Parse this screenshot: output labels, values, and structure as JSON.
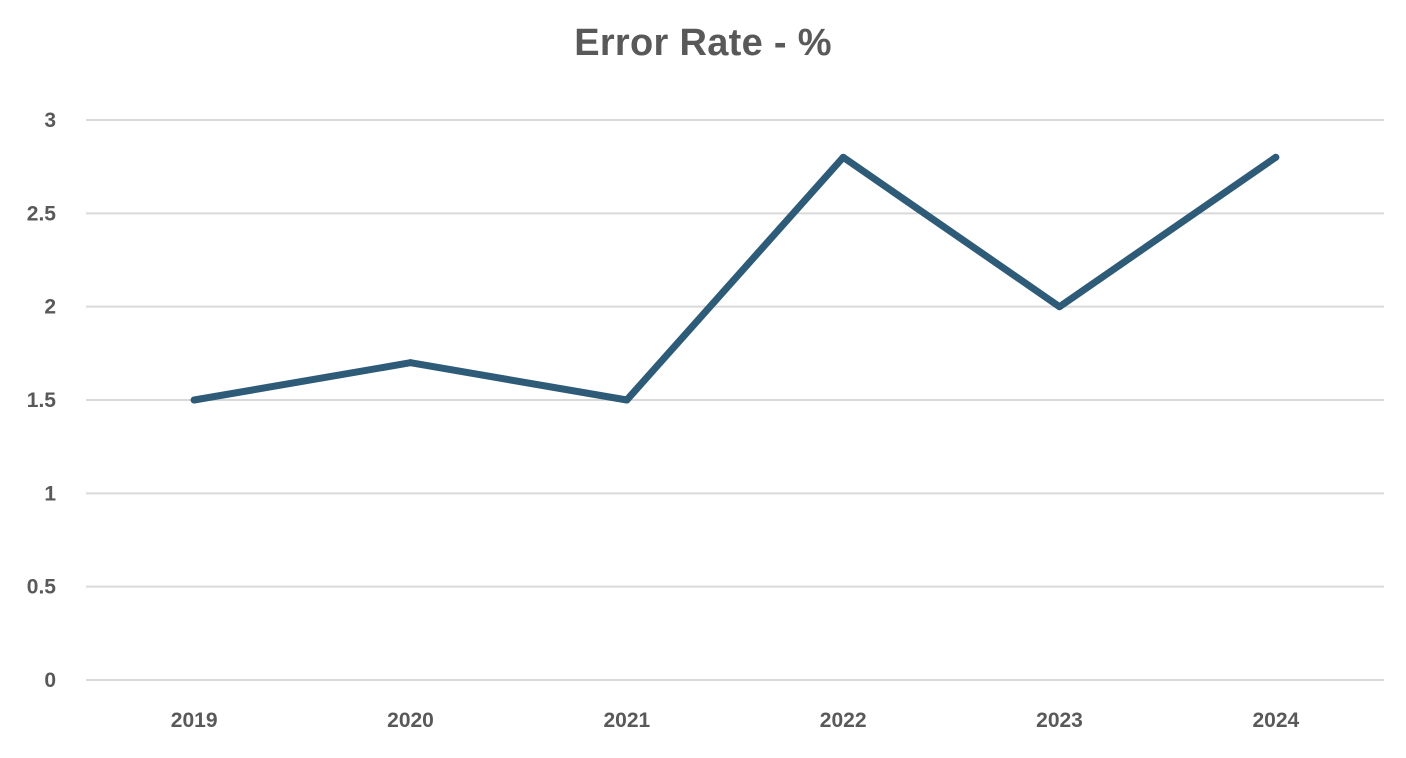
{
  "chart_data": {
    "type": "line",
    "title": "Error Rate - %",
    "xlabel": "",
    "ylabel": "",
    "categories": [
      "2019",
      "2020",
      "2021",
      "2022",
      "2023",
      "2024"
    ],
    "series": [
      {
        "values": [
          1.5,
          1.7,
          1.5,
          2.8,
          2.0,
          2.8
        ],
        "color": "#2e5b78"
      }
    ],
    "ylim": [
      0,
      3
    ],
    "yticks": [
      "0",
      "0.5",
      "1",
      "1.5",
      "2",
      "2.5",
      "3"
    ],
    "grid": true,
    "legend": "none"
  }
}
